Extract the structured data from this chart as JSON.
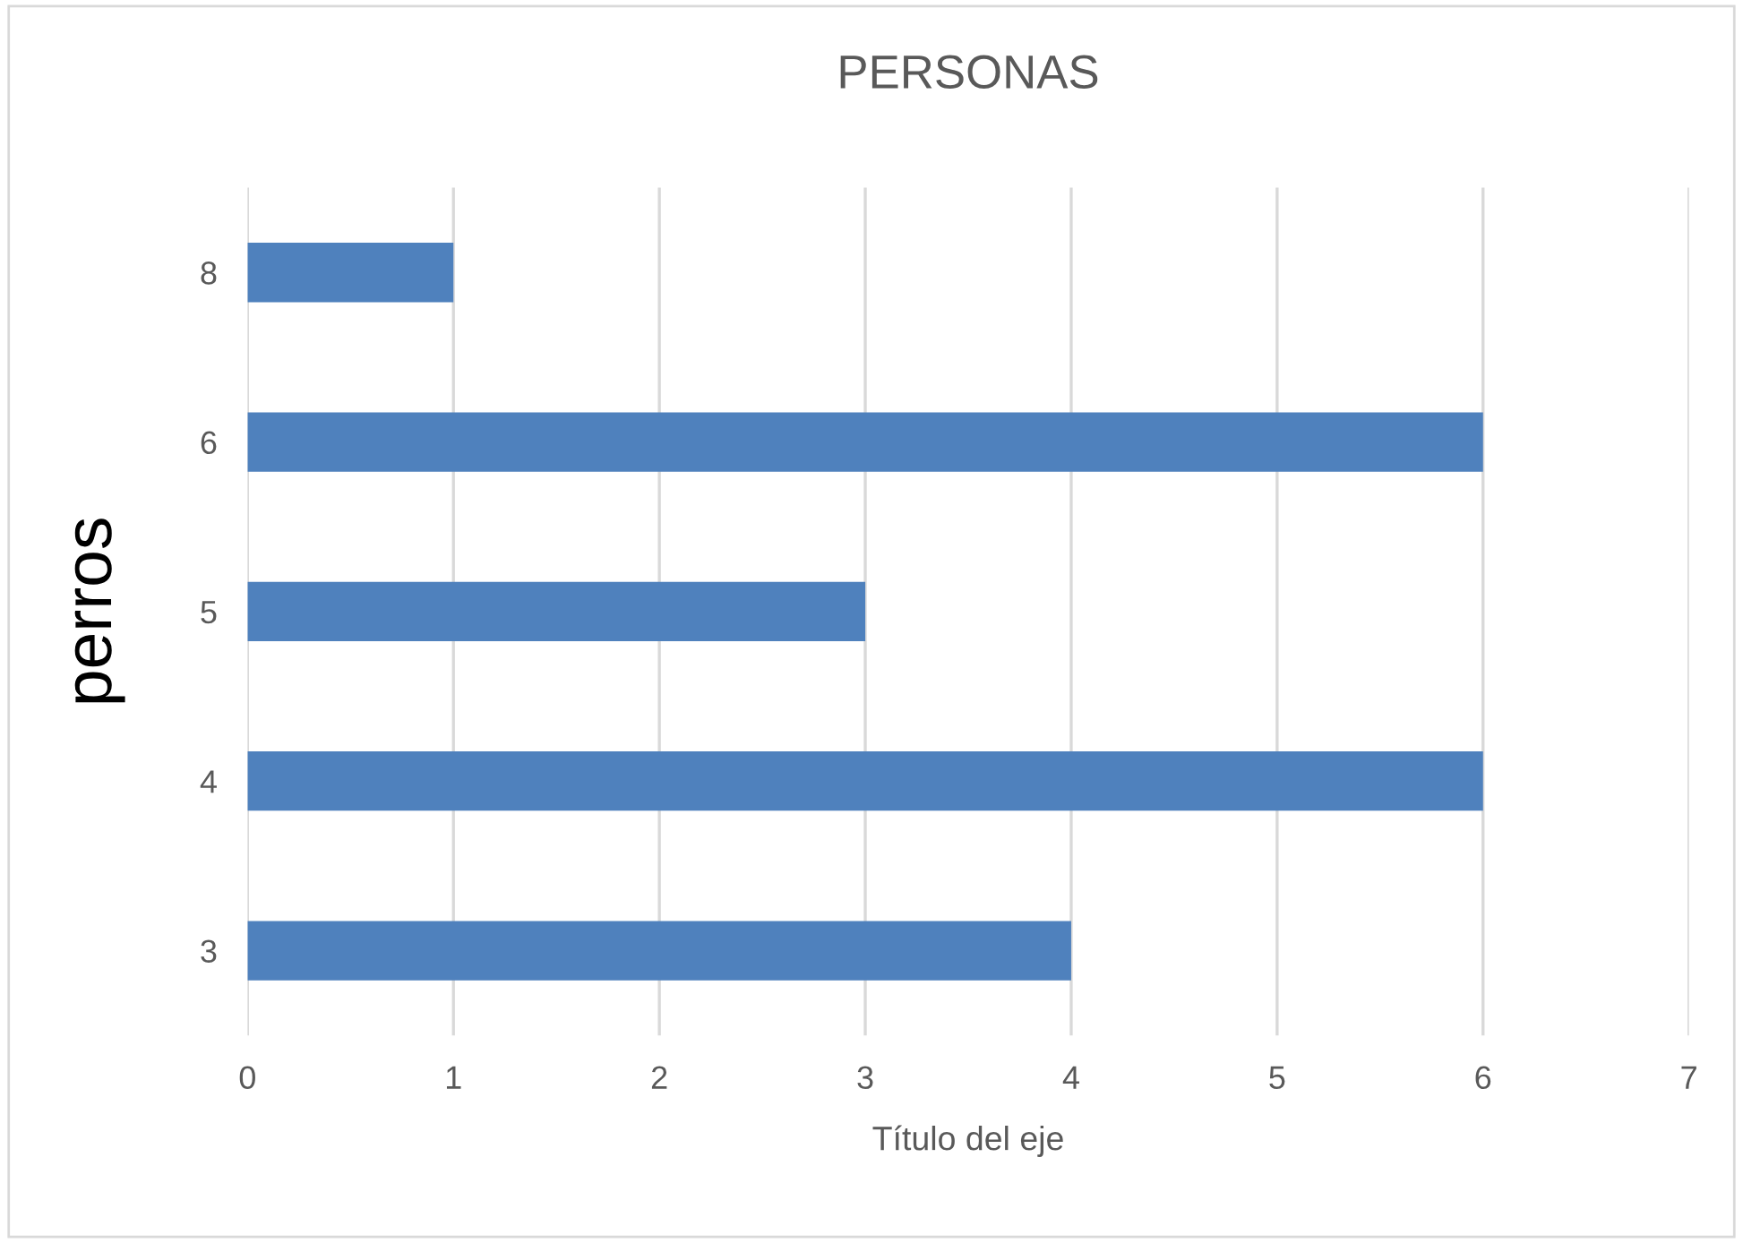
{
  "chart_data": {
    "type": "bar",
    "orientation": "horizontal",
    "title": "PERSONAS",
    "xlabel": "Título del eje",
    "ylabel": "perros",
    "categories": [
      "8",
      "6",
      "5",
      "4",
      "3"
    ],
    "values": [
      1,
      6,
      3,
      6,
      4
    ],
    "color": "#4f81bd",
    "xlim": [
      0,
      7
    ],
    "xticks": [
      0,
      1,
      2,
      3,
      4,
      5,
      6,
      7
    ],
    "grid": "x",
    "legend": false
  }
}
